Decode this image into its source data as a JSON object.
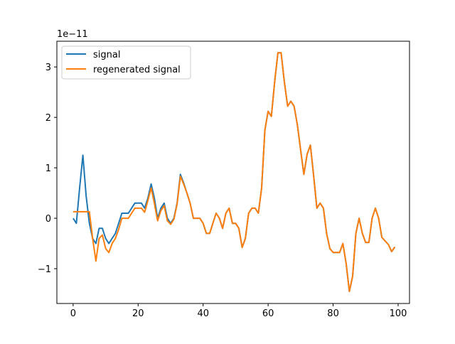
{
  "chart_data": {
    "type": "line",
    "title": "",
    "xlabel": "",
    "ylabel": "",
    "offset_label": "1e−11",
    "xlim": [
      -5,
      103.5
    ],
    "ylim": [
      -1.69,
      3.51
    ],
    "xticks": [
      0,
      20,
      40,
      60,
      80,
      100
    ],
    "yticks": [
      -1,
      0,
      1,
      2,
      3
    ],
    "ytick_labels": [
      "−1",
      "0",
      "1",
      "2",
      "3"
    ],
    "grid": false,
    "legend_position": "top-left",
    "series": [
      {
        "name": "signal",
        "color": "#1f77b4",
        "values": [
          0.0,
          -0.1,
          0.6,
          1.25,
          0.45,
          -0.1,
          -0.4,
          -0.5,
          -0.2,
          -0.2,
          -0.4,
          -0.5,
          -0.4,
          -0.3,
          -0.1,
          0.1,
          0.1,
          0.1,
          0.2,
          0.3,
          0.3,
          0.3,
          0.2,
          0.4,
          0.68,
          0.4,
          0.0,
          0.2,
          0.3,
          0.0,
          -0.1,
          0.0,
          0.3,
          0.87,
          0.7,
          0.5,
          0.3,
          0.0,
          0.0,
          0.0,
          -0.1,
          -0.3,
          -0.3,
          -0.1,
          0.1,
          0.0,
          -0.2,
          0.1,
          0.2,
          -0.1,
          -0.1,
          -0.2,
          -0.58,
          -0.4,
          0.1,
          0.2,
          0.2,
          0.1,
          0.6,
          1.75,
          2.12,
          2.02,
          2.7,
          3.28,
          3.28,
          2.7,
          2.22,
          2.32,
          2.22,
          1.85,
          1.35,
          0.87,
          1.27,
          1.45,
          0.85,
          0.2,
          0.3,
          0.2,
          -0.3,
          -0.6,
          -0.68,
          -0.68,
          -0.68,
          -0.5,
          -0.9,
          -1.45,
          -1.15,
          -0.3,
          0.0,
          -0.3,
          -0.48,
          -0.48,
          0.0,
          0.2,
          0.0,
          -0.38,
          -0.45,
          -0.52,
          -0.66,
          -0.57
        ]
      },
      {
        "name": "regenerated signal",
        "color": "#ff7f0e",
        "values": [
          0.13,
          0.13,
          0.13,
          0.13,
          0.13,
          0.13,
          -0.4,
          -0.85,
          -0.4,
          -0.33,
          -0.6,
          -0.68,
          -0.5,
          -0.4,
          -0.22,
          0.0,
          0.0,
          0.0,
          0.1,
          0.2,
          0.2,
          0.2,
          0.12,
          0.35,
          0.6,
          0.3,
          -0.05,
          0.15,
          0.25,
          -0.05,
          -0.12,
          -0.02,
          0.28,
          0.83,
          0.68,
          0.5,
          0.3,
          0.0,
          0.0,
          0.0,
          -0.1,
          -0.3,
          -0.3,
          -0.1,
          0.1,
          0.0,
          -0.2,
          0.1,
          0.2,
          -0.1,
          -0.1,
          -0.2,
          -0.58,
          -0.4,
          0.1,
          0.2,
          0.2,
          0.1,
          0.6,
          1.75,
          2.12,
          2.02,
          2.7,
          3.28,
          3.28,
          2.7,
          2.22,
          2.32,
          2.22,
          1.85,
          1.35,
          0.87,
          1.27,
          1.45,
          0.85,
          0.2,
          0.3,
          0.2,
          -0.3,
          -0.6,
          -0.68,
          -0.68,
          -0.68,
          -0.5,
          -0.9,
          -1.45,
          -1.15,
          -0.3,
          0.0,
          -0.3,
          -0.48,
          -0.48,
          0.0,
          0.2,
          0.0,
          -0.38,
          -0.45,
          -0.52,
          -0.66,
          -0.57
        ]
      }
    ]
  }
}
